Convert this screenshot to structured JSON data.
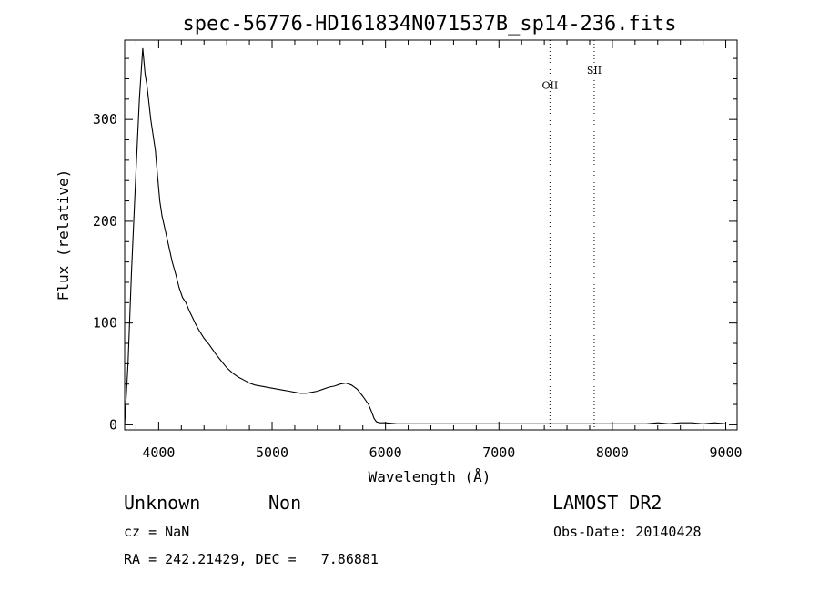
{
  "chart_data": {
    "type": "line",
    "title": "spec-56776-HD161834N071537B_sp14-236.fits",
    "xlabel": "Wavelength (Å)",
    "ylabel": "Flux (relative)",
    "xlim": [
      3700,
      9100
    ],
    "ylim": [
      -5,
      378
    ],
    "xticks": [
      4000,
      5000,
      6000,
      7000,
      8000,
      9000
    ],
    "yticks": [
      0,
      100,
      200,
      300
    ],
    "grid": false,
    "series": [
      {
        "x": [
          3700,
          3730,
          3760,
          3800,
          3830,
          3860,
          3880,
          3895,
          3910,
          3930,
          3950,
          3970,
          3990,
          4010,
          4030,
          4060,
          4090,
          4120,
          4150,
          4180,
          4210,
          4240,
          4270,
          4300,
          4330,
          4360,
          4400,
          4450,
          4500,
          4550,
          4600,
          4650,
          4700,
          4750,
          4800,
          4850,
          4900,
          4950,
          5000,
          5050,
          5100,
          5150,
          5200,
          5250,
          5300,
          5350,
          5400,
          5450,
          5500,
          5550,
          5600,
          5650,
          5700,
          5750,
          5800,
          5850,
          5880,
          5900,
          5920,
          5950,
          6000,
          6100,
          6200,
          6300,
          6400,
          6500,
          6600,
          6700,
          6800,
          6900,
          7000,
          7100,
          7200,
          7300,
          7400,
          7500,
          7600,
          7700,
          7800,
          7900,
          8000,
          8100,
          8200,
          8300,
          8400,
          8500,
          8600,
          8700,
          8800,
          8900,
          9000
        ],
        "y": [
          0,
          60,
          150,
          250,
          320,
          370,
          345,
          335,
          320,
          300,
          285,
          270,
          245,
          220,
          205,
          190,
          175,
          160,
          148,
          135,
          125,
          120,
          112,
          105,
          98,
          92,
          85,
          78,
          70,
          63,
          56,
          51,
          47,
          44,
          41,
          39,
          38,
          37,
          36,
          35,
          34,
          33,
          32,
          31,
          31,
          32,
          33,
          35,
          37,
          38,
          40,
          41,
          39,
          35,
          28,
          20,
          12,
          6,
          3,
          2,
          2,
          1,
          1,
          1,
          1,
          1,
          1,
          1,
          1,
          1,
          1,
          1,
          1,
          1,
          1,
          1,
          1,
          1,
          1,
          1,
          1,
          1,
          1,
          1,
          2,
          1,
          2,
          2,
          1,
          2,
          1
        ]
      }
    ],
    "annotations": [
      {
        "label": "OII",
        "x": 7450,
        "y": 330
      },
      {
        "label": "SII",
        "x": 7840,
        "y": 345
      }
    ]
  },
  "info": {
    "class": "Unknown",
    "subclass": "Non",
    "survey": "LAMOST DR2",
    "cz": "cz = NaN",
    "obs_date": "Obs-Date: 20140428",
    "coords": "RA = 242.21429, DEC =   7.86881"
  }
}
